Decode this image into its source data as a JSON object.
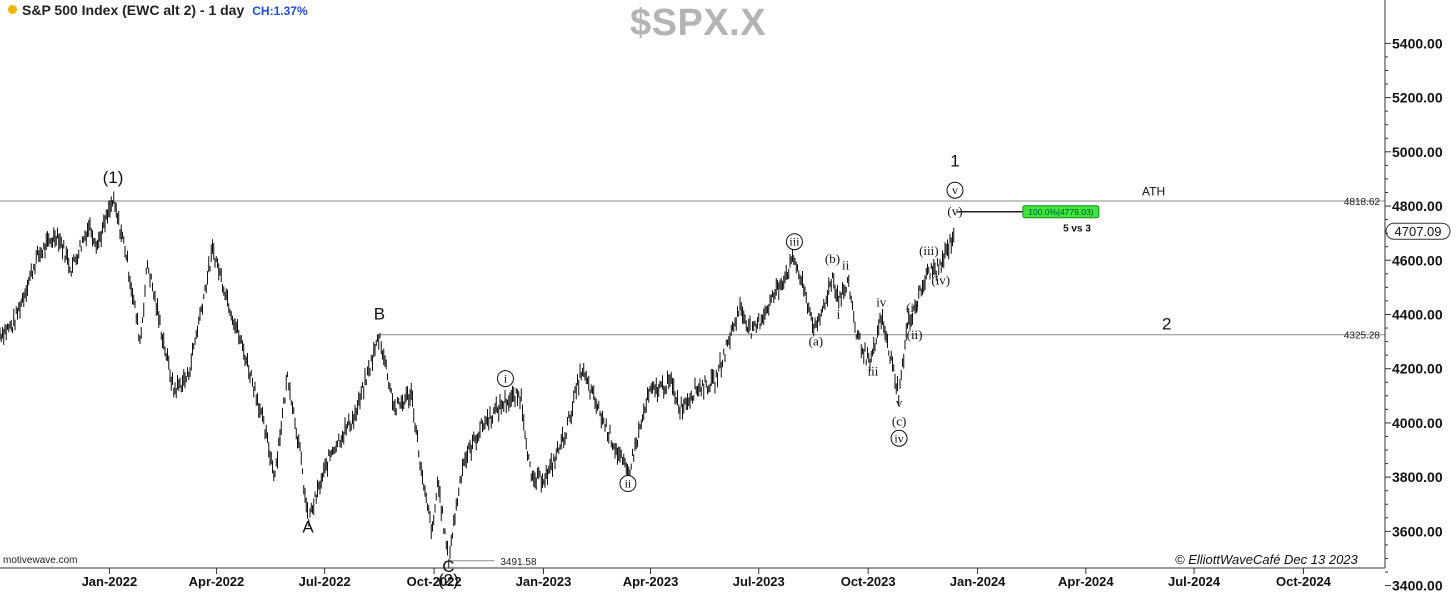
{
  "header": {
    "title": "S&P 500 Index (EWC alt 2) - 1 day",
    "change": "CH:1.37%",
    "symbol": "$SPX.X",
    "source": "motivewave.com",
    "copyright": "© ElliottWaveCafé Dec 13 2023"
  },
  "colors": {
    "bars": "#111111",
    "grid": "#9a9a9a",
    "target_box": "#3ee63e",
    "symbol": "#b4b4b4",
    "change": "#1f4fd6"
  },
  "chart_data": {
    "type": "bar",
    "x_axis": {
      "ticks": [
        "Jan-2022",
        "Apr-2022",
        "Jul-2022",
        "Oct-2022",
        "Jan-2023",
        "Apr-2023",
        "Jul-2023",
        "Oct-2023",
        "Jan-2024",
        "Apr-2024",
        "Jul-2024",
        "Oct-2024"
      ],
      "range": [
        "2021-10-01",
        "2024-12-01"
      ]
    },
    "y_axis": {
      "ticks": [
        "5400.00",
        "5200.00",
        "5000.00",
        "4800.00",
        "4600.00",
        "4400.00",
        "4200.00",
        "4000.00",
        "3800.00",
        "3600.00",
        "3400.00"
      ],
      "range": [
        3380,
        5560
      ]
    },
    "price_path": [
      [
        "2021-10-01",
        4330
      ],
      [
        "2021-10-12",
        4360
      ],
      [
        "2021-11-01",
        4610
      ],
      [
        "2021-11-18",
        4700
      ],
      [
        "2021-11-30",
        4570
      ],
      [
        "2021-12-15",
        4730
      ],
      [
        "2021-12-22",
        4660
      ],
      [
        "2022-01-04",
        4818
      ],
      [
        "2022-01-14",
        4650
      ],
      [
        "2022-01-27",
        4300
      ],
      [
        "2022-02-02",
        4590
      ],
      [
        "2022-02-24",
        4120
      ],
      [
        "2022-03-08",
        4170
      ],
      [
        "2022-03-29",
        4640
      ],
      [
        "2022-04-15",
        4390
      ],
      [
        "2022-04-25",
        4250
      ],
      [
        "2022-05-05",
        4100
      ],
      [
        "2022-05-20",
        3810
      ],
      [
        "2022-05-31",
        4180
      ],
      [
        "2022-06-10",
        3900
      ],
      [
        "2022-06-17",
        3637
      ],
      [
        "2022-07-07",
        3900
      ],
      [
        "2022-07-27",
        4030
      ],
      [
        "2022-08-16",
        4325
      ],
      [
        "2022-08-29",
        4050
      ],
      [
        "2022-09-12",
        4110
      ],
      [
        "2022-09-22",
        3760
      ],
      [
        "2022-09-30",
        3590
      ],
      [
        "2022-10-04",
        3790
      ],
      [
        "2022-10-13",
        3491.58
      ],
      [
        "2022-10-25",
        3850
      ],
      [
        "2022-11-11",
        3995
      ],
      [
        "2022-11-30",
        4080
      ],
      [
        "2022-12-13",
        4100
      ],
      [
        "2022-12-22",
        3780
      ],
      [
        "2023-01-05",
        3810
      ],
      [
        "2023-01-20",
        3970
      ],
      [
        "2023-02-02",
        4195
      ],
      [
        "2023-02-21",
        4000
      ],
      [
        "2023-03-13",
        3808
      ],
      [
        "2023-03-31",
        4110
      ],
      [
        "2023-04-18",
        4150
      ],
      [
        "2023-04-26",
        4055
      ],
      [
        "2023-05-10",
        4130
      ],
      [
        "2023-05-25",
        4150
      ],
      [
        "2023-06-15",
        4425
      ],
      [
        "2023-06-26",
        4330
      ],
      [
        "2023-07-31",
        4607
      ],
      [
        "2023-08-18",
        4335
      ],
      [
        "2023-09-01",
        4540
      ],
      [
        "2023-09-06",
        4460
      ],
      [
        "2023-09-15",
        4510
      ],
      [
        "2023-09-21",
        4330
      ],
      [
        "2023-10-03",
        4210
      ],
      [
        "2023-10-12",
        4390
      ],
      [
        "2023-10-27",
        4103
      ],
      [
        "2023-11-03",
        4360
      ],
      [
        "2023-11-21",
        4560
      ],
      [
        "2023-11-30",
        4570
      ],
      [
        "2023-12-13",
        4707
      ]
    ],
    "levels": [
      {
        "value": 4818.62,
        "label": "4818.62"
      },
      {
        "value": 4325.28,
        "label": "4325.28",
        "note": "2"
      },
      {
        "value": 3491.58,
        "label": "3491.58"
      },
      {
        "value": 4779.03,
        "label": "100.0%(4779.03)",
        "note": "5 vs 3"
      }
    ],
    "last_price": {
      "value": 4707.09,
      "label": "4707.09"
    },
    "annotations": [
      {
        "text": "(1)",
        "x": "2022-01-04",
        "y": 4885,
        "style": "sans"
      },
      {
        "text": "A",
        "x": "2022-06-17",
        "y": 3595,
        "style": "sans"
      },
      {
        "text": "B",
        "x": "2022-08-16",
        "y": 4382,
        "style": "sans"
      },
      {
        "text": "C",
        "x": "2022-10-13",
        "y": 3450,
        "style": "sans"
      },
      {
        "text": "(2)",
        "x": "2022-10-13",
        "y": 3400,
        "style": "sans"
      },
      {
        "text": "i",
        "x": "2022-11-30",
        "y": 4145,
        "style": "circle"
      },
      {
        "text": "ii",
        "x": "2023-03-13",
        "y": 3758,
        "style": "circle"
      },
      {
        "text": "iii",
        "x": "2023-07-31",
        "y": 4650,
        "style": "circle"
      },
      {
        "text": "(a)",
        "x": "2023-08-18",
        "y": 4285,
        "style": "serif"
      },
      {
        "text": "(b)",
        "x": "2023-09-01",
        "y": 4590,
        "style": "serif"
      },
      {
        "text": "ii",
        "x": "2023-09-12",
        "y": 4565,
        "style": "serif"
      },
      {
        "text": "i",
        "x": "2023-09-06",
        "y": 4385,
        "style": "serif"
      },
      {
        "text": "iv",
        "x": "2023-10-12",
        "y": 4430,
        "style": "serif"
      },
      {
        "text": "iii",
        "x": "2023-10-05",
        "y": 4175,
        "style": "serif"
      },
      {
        "text": "v",
        "x": "2023-10-27",
        "y": 4058,
        "style": "serif"
      },
      {
        "text": "(c)",
        "x": "2023-10-27",
        "y": 3990,
        "style": "serif"
      },
      {
        "text": "iv",
        "x": "2023-10-27",
        "y": 3925,
        "style": "circle"
      },
      {
        "text": "(i)",
        "x": "2023-11-07",
        "y": 4410,
        "style": "serif"
      },
      {
        "text": "(ii)",
        "x": "2023-11-09",
        "y": 4310,
        "style": "serif"
      },
      {
        "text": "(iii)",
        "x": "2023-11-21",
        "y": 4620,
        "style": "serif"
      },
      {
        "text": "(iv)",
        "x": "2023-12-01",
        "y": 4510,
        "style": "serif"
      },
      {
        "text": "(v)",
        "x": "2023-12-13",
        "y": 4765,
        "style": "serif"
      },
      {
        "text": "v",
        "x": "2023-12-13",
        "y": 4840,
        "style": "circle"
      },
      {
        "text": "1",
        "x": "2023-12-13",
        "y": 4945,
        "style": "sans"
      },
      {
        "text": "ATH",
        "x": "2024-05-28",
        "y": 4838,
        "style": "sans-small"
      }
    ],
    "grid": false,
    "legend": "none"
  }
}
